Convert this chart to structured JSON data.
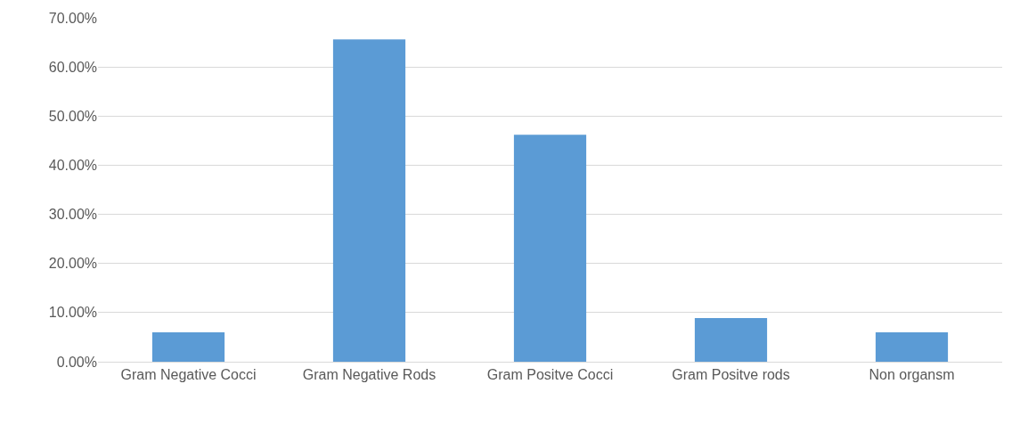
{
  "chart_data": {
    "type": "bar",
    "categories": [
      "Gram Negative Cocci",
      "Gram Negative Rods",
      "Gram Positve Cocci",
      "Gram Positve rods",
      "Non organsm"
    ],
    "values": [
      6.0,
      65.6,
      46.2,
      8.9,
      6.0
    ],
    "color": "#5b9bd5",
    "ylim": [
      0,
      70
    ],
    "yticks": [
      {
        "value": 0,
        "label": "0.00%"
      },
      {
        "value": 10,
        "label": "10.00%"
      },
      {
        "value": 20,
        "label": "20.00%"
      },
      {
        "value": 30,
        "label": "30.00%"
      },
      {
        "value": 40,
        "label": "40.00%"
      },
      {
        "value": 50,
        "label": "50.00%"
      },
      {
        "value": 60,
        "label": "60.00%"
      },
      {
        "value": 70,
        "label": "70.00%"
      }
    ],
    "grid": "y"
  }
}
